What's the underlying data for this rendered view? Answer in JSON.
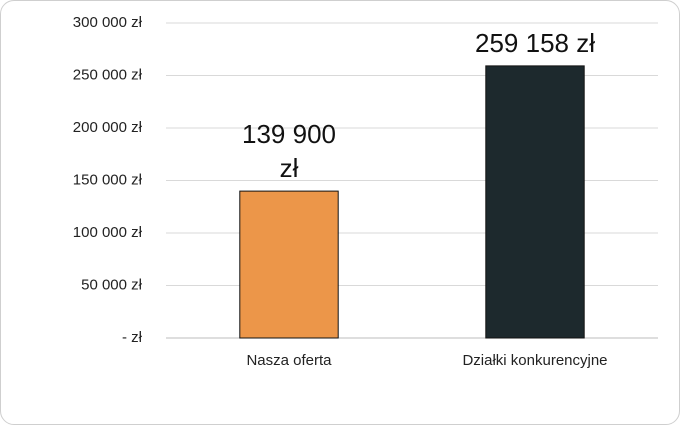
{
  "chart_data": {
    "type": "bar",
    "categories": [
      "Nasza oferta",
      "Działki konkurencyjne"
    ],
    "values": [
      139900,
      259158
    ],
    "value_labels": [
      "139 900 zł",
      "259 158 zł"
    ],
    "colors": [
      "#ec9649",
      "#1d292d"
    ],
    "ylim": [
      0,
      300000
    ],
    "yticks": [
      {
        "value": 0,
        "label": "-   zł"
      },
      {
        "value": 50000,
        "label": "50 000 zł"
      },
      {
        "value": 100000,
        "label": "100 000 zł"
      },
      {
        "value": 150000,
        "label": "150 000 zł"
      },
      {
        "value": 200000,
        "label": "200 000 zł"
      },
      {
        "value": 250000,
        "label": "250 000 zł"
      },
      {
        "value": 300000,
        "label": "300 000 zł"
      }
    ],
    "grid": true
  }
}
